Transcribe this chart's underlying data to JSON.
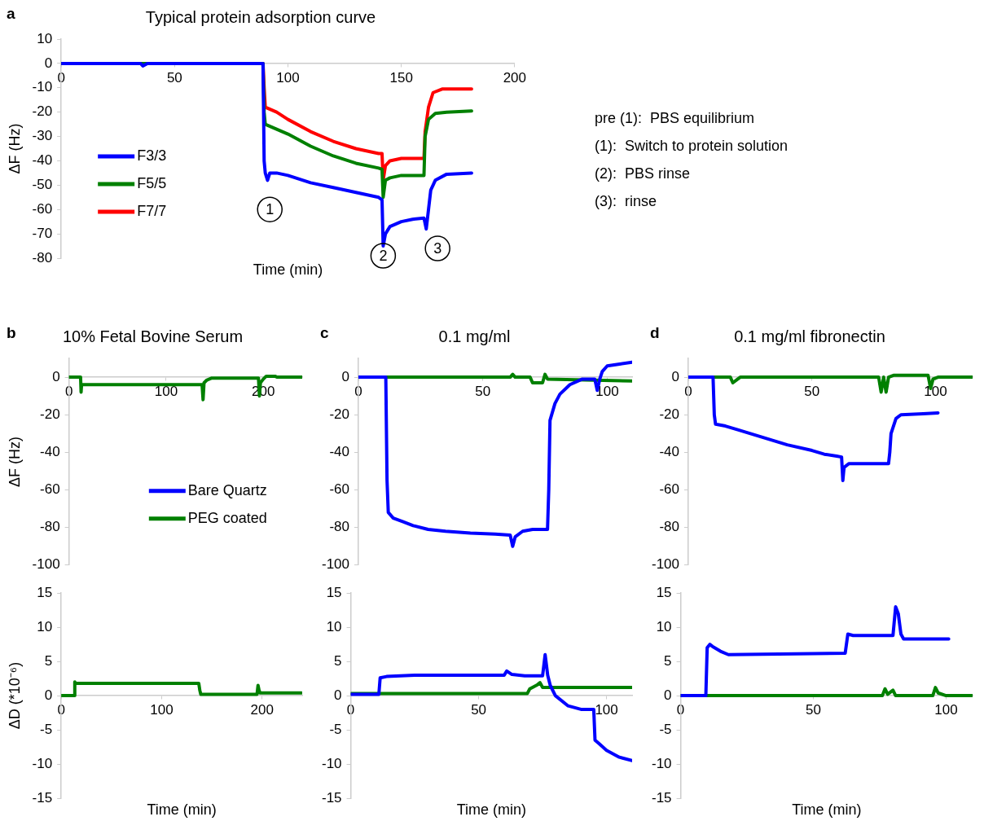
{
  "chart_data": [
    {
      "type": "line",
      "title": "Typical protein adsorption curve",
      "xlabel": "Time (min)",
      "ylabel": "ΔF (Hz)",
      "xlim": [
        0,
        200
      ],
      "ylim": [
        -80,
        10
      ],
      "xticks": [
        0,
        50,
        100,
        150,
        200
      ],
      "yticks": [
        -80,
        -70,
        -60,
        -50,
        -40,
        -30,
        -20,
        -10,
        0,
        10
      ],
      "legend": "bottom left",
      "marker": "none",
      "annotations": [
        "a",
        "pre (1):  PBS equilibrium",
        "(1):  Switch to protein solution",
        "(2):  PBS rinse",
        "(3):  rinse",
        {
          "text": "1",
          "x": 92,
          "y": -60
        },
        {
          "text": "2",
          "x": 142,
          "y": -79
        },
        {
          "text": "3",
          "x": 166,
          "y": -76
        }
      ],
      "series": [
        {
          "name": "F3/3",
          "color": "#0000ff",
          "x": [
            0,
            35,
            36,
            38,
            89,
            89.5,
            90,
            91,
            92,
            95,
            100,
            110,
            120,
            130,
            140,
            141.5,
            142,
            143,
            145,
            150,
            155,
            160,
            161,
            162,
            163,
            165,
            170,
            181
          ],
          "values": [
            0,
            0,
            -1,
            0,
            0,
            -40,
            -45,
            -48,
            -45,
            -45,
            -46,
            -49,
            -51,
            -53,
            -55,
            -56,
            -75,
            -70,
            -67,
            -65,
            -64,
            -63.5,
            -68,
            -60,
            -52,
            -48,
            -45.5,
            -45
          ]
        },
        {
          "name": "F5/5",
          "color": "#008000",
          "x": [
            0,
            89,
            89.5,
            90,
            95,
            100,
            110,
            120,
            130,
            140,
            141.5,
            142,
            143,
            145,
            150,
            160,
            160.5,
            162,
            165,
            170,
            181
          ],
          "values": [
            0,
            0,
            -20,
            -25,
            -27,
            -29,
            -34,
            -38,
            -41,
            -43,
            -43.5,
            -55,
            -48,
            -47,
            -46,
            -46,
            -30,
            -23,
            -20.5,
            -20,
            -19.5
          ]
        },
        {
          "name": "F7/7",
          "color": "#ff0000",
          "x": [
            0,
            89,
            89.5,
            90,
            95,
            100,
            110,
            120,
            130,
            140,
            141.5,
            142,
            143,
            145,
            150,
            160,
            160.5,
            162,
            164,
            168,
            181
          ],
          "values": [
            0,
            0,
            -10,
            -18,
            -20,
            -23,
            -28,
            -32,
            -35,
            -37,
            -37,
            -48,
            -42,
            -40,
            -39,
            -39,
            -28,
            -18,
            -12,
            -10.5,
            -10.5
          ]
        }
      ]
    },
    {
      "type": "line",
      "title": "10% Fetal Bovine Serum",
      "ylabel": "ΔF (Hz)",
      "xlim": [
        0,
        240
      ],
      "ylim": [
        -100,
        10
      ],
      "xticks": [
        0,
        100,
        200
      ],
      "yticks": [
        -100,
        -80,
        -60,
        -40,
        -20,
        0
      ],
      "legend": "bottom",
      "marker": "none",
      "annotations": [
        "b"
      ],
      "series": [
        {
          "name": "Bare Quartz",
          "color": "#0000ff"
        },
        {
          "name": "PEG coated",
          "color": "#008000",
          "x": [
            0,
            12,
            12.5,
            13,
            137,
            138,
            139,
            142,
            147,
            195,
            196,
            197,
            200,
            203,
            212,
            214,
            240
          ],
          "values": [
            0,
            0,
            -8,
            -4,
            -4,
            -12,
            -3,
            -1.5,
            -0.5,
            -0.5,
            -10,
            -3,
            -1,
            0.5,
            0.5,
            0,
            0
          ]
        }
      ]
    },
    {
      "type": "line",
      "title": "0.1 mg/ml",
      "xlim": [
        0,
        110
      ],
      "ylim": [
        -100,
        10
      ],
      "xticks": [
        0,
        50,
        100
      ],
      "yticks": [
        -100,
        -80,
        -60,
        -40,
        -20,
        0
      ],
      "marker": "none",
      "annotations": [
        "c"
      ],
      "series": [
        {
          "color": "#0000ff",
          "x": [
            0,
            11,
            11.5,
            12,
            14,
            18,
            22,
            28,
            35,
            45,
            55,
            61,
            62,
            63,
            66,
            70,
            76,
            76.5,
            77,
            79,
            81,
            85,
            90,
            95,
            96,
            97,
            98,
            100,
            105,
            110
          ],
          "values": [
            0,
            0,
            -55,
            -72,
            -75,
            -77,
            -79,
            -81,
            -82,
            -83,
            -83.5,
            -84,
            -90,
            -85,
            -82,
            -81,
            -81,
            -60,
            -23,
            -14,
            -9,
            -4,
            -1,
            -1,
            -7,
            -1,
            3,
            6,
            7,
            8
          ]
        },
        {
          "color": "#008000",
          "x": [
            0,
            61,
            62,
            63,
            69,
            70,
            74,
            75,
            76,
            110
          ],
          "values": [
            0,
            0,
            1.5,
            0,
            0,
            -3,
            -3,
            1.5,
            -1,
            -2
          ]
        }
      ]
    },
    {
      "type": "line",
      "title": "0.1 mg/ml fibronectin",
      "xlim": [
        0,
        115
      ],
      "ylim": [
        -100,
        10
      ],
      "xticks": [
        0,
        50,
        100
      ],
      "yticks": [
        -100,
        -80,
        -60,
        -40,
        -20,
        0
      ],
      "marker": "none",
      "annotations": [
        "d"
      ],
      "series": [
        {
          "color": "#0000ff",
          "x": [
            0,
            10,
            10.5,
            11,
            15,
            20,
            30,
            40,
            50,
            55,
            60,
            62,
            62.5,
            63,
            65,
            75,
            81,
            81.5,
            82,
            84,
            86,
            95,
            101
          ],
          "values": [
            0,
            0,
            -20,
            -25,
            -26,
            -28,
            -32,
            -36,
            -39,
            -41,
            -42,
            -42.5,
            -55,
            -48,
            -46,
            -46,
            -46,
            -40,
            -30,
            -22,
            -20,
            -19.5,
            -19
          ]
        },
        {
          "color": "#008000",
          "x": [
            0,
            17,
            18,
            20,
            21,
            77,
            78,
            79,
            80,
            81,
            83,
            97,
            98,
            99,
            101,
            115
          ],
          "values": [
            0,
            0,
            -3,
            -1,
            0,
            0,
            -8,
            0,
            -8,
            0,
            1,
            1,
            -6,
            -1,
            0,
            0
          ]
        }
      ]
    },
    {
      "type": "line",
      "xlabel": "Time (min)",
      "ylabel": "ΔD (*10⁻⁶)",
      "xlim": [
        0,
        240
      ],
      "ylim": [
        -15,
        15
      ],
      "xticks": [
        0,
        100,
        200
      ],
      "yticks": [
        -15,
        -10,
        -5,
        0,
        5,
        10,
        15
      ],
      "marker": "none",
      "series": [
        {
          "color": "#008000",
          "x": [
            0,
            13,
            13.5,
            14,
            137,
            138,
            139,
            195,
            196,
            197,
            198,
            239
          ],
          "values": [
            0,
            0,
            2,
            1.8,
            1.8,
            0.8,
            0.2,
            0.2,
            1.5,
            0.8,
            0.4,
            0.4
          ]
        }
      ]
    },
    {
      "type": "line",
      "xlabel": "Time (min)",
      "xlim": [
        0,
        110
      ],
      "ylim": [
        -15,
        15
      ],
      "xticks": [
        0,
        50,
        100
      ],
      "yticks": [
        -15,
        -10,
        -5,
        0,
        5,
        10,
        15
      ],
      "marker": "none",
      "series": [
        {
          "color": "#0000ff",
          "x": [
            0,
            11,
            11.5,
            14,
            25,
            60,
            61,
            63,
            68,
            75,
            76,
            77,
            78,
            80,
            85,
            90,
            95,
            95.5,
            97,
            100,
            105,
            110
          ],
          "values": [
            0.2,
            0.2,
            2.6,
            2.8,
            3,
            3,
            3.6,
            3.1,
            2.9,
            2.9,
            6,
            3,
            1.5,
            0,
            -1.5,
            -2,
            -2,
            -6.5,
            -7,
            -8,
            -9,
            -9.5
          ]
        },
        {
          "color": "#008000",
          "x": [
            0,
            69,
            70,
            73,
            74,
            75,
            110
          ],
          "values": [
            0.3,
            0.3,
            1,
            1.6,
            1.9,
            1.2,
            1.2
          ]
        }
      ]
    },
    {
      "type": "line",
      "xlabel": "Time (min)",
      "xlim": [
        0,
        110
      ],
      "ylim": [
        -15,
        15
      ],
      "xticks": [
        0,
        50,
        100
      ],
      "yticks": [
        -15,
        -10,
        -5,
        0,
        5,
        10,
        15
      ],
      "marker": "none",
      "series": [
        {
          "color": "#0000ff",
          "x": [
            0,
            9.5,
            10,
            11,
            12,
            15,
            18,
            62,
            63,
            65,
            80,
            81,
            82,
            83,
            84,
            101
          ],
          "values": [
            0,
            0,
            7,
            7.5,
            7.2,
            6.5,
            6,
            6.2,
            9,
            8.8,
            8.8,
            13,
            12,
            9,
            8.3,
            8.3
          ]
        },
        {
          "color": "#008000",
          "x": [
            0,
            76,
            77,
            78,
            80,
            81,
            95,
            96,
            97,
            100,
            110
          ],
          "values": [
            0,
            0,
            1,
            0.2,
            0.8,
            0,
            0,
            1.2,
            0.4,
            0,
            0
          ]
        }
      ]
    }
  ]
}
